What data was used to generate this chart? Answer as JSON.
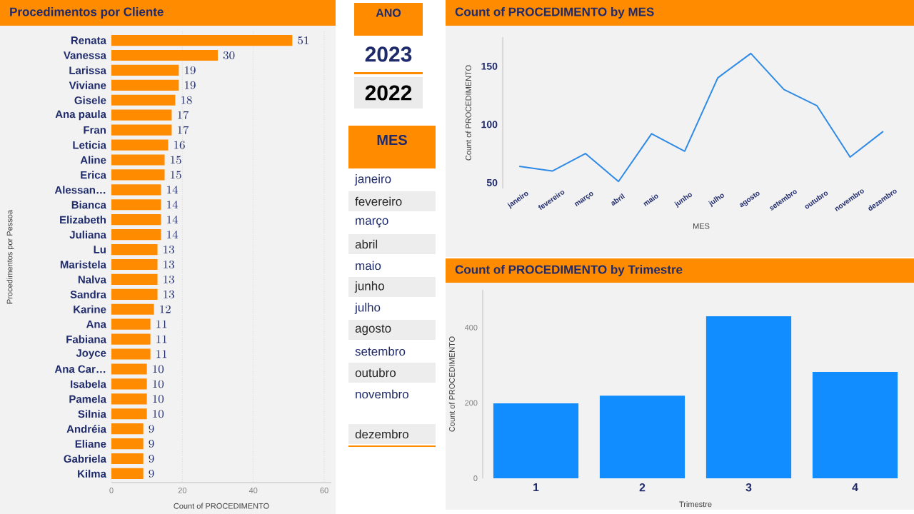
{
  "chart_data": [
    {
      "type": "bar",
      "orientation": "horizontal",
      "title": "Procedimentos por Cliente",
      "xlabel": "Count of PROCEDIMENTO",
      "ylabel": "Procedimentos por Pessoa",
      "categories": [
        "Renata",
        "Vanessa",
        "Larissa",
        "Viviane",
        "Gisele",
        "Ana paula",
        "Fran",
        "Leticia",
        "Aline",
        "Erica",
        "Alessan…",
        "Bianca",
        "Elizabeth",
        "Juliana",
        "Lu",
        "Maristela",
        "Nalva",
        "Sandra",
        "Karine",
        "Ana",
        "Fabiana",
        "Joyce",
        "Ana Car…",
        "Isabela",
        "Pamela",
        "Silnia",
        "Andréia",
        "Eliane",
        "Gabriela",
        "Kilma"
      ],
      "values": [
        51,
        30,
        19,
        19,
        18,
        17,
        17,
        16,
        15,
        15,
        14,
        14,
        14,
        14,
        13,
        13,
        13,
        13,
        12,
        11,
        11,
        11,
        10,
        10,
        10,
        10,
        9,
        9,
        9,
        9
      ],
      "color": "#ff8c00",
      "data_labels": true,
      "xlim": [
        0,
        62
      ],
      "xticks": [
        0,
        20,
        40,
        60
      ],
      "grid": "x"
    },
    {
      "type": "other",
      "title": "ANO",
      "annotations": [
        "2023",
        "2022"
      ]
    },
    {
      "type": "other",
      "title": "MES",
      "annotations": [
        "janeiro",
        "fevereiro",
        "março",
        "abril",
        "maio",
        "junho",
        "julho",
        "agosto",
        "setembro",
        "outubro",
        "novembro",
        "dezembro"
      ]
    },
    {
      "type": "line",
      "title": "Count of PROCEDIMENTO by MES",
      "xlabel": "MES",
      "ylabel": "Count of PROCEDIMENTO",
      "categories": [
        "janeiro",
        "fevereiro",
        "março",
        "abril",
        "maio",
        "junho",
        "julho",
        "agosto",
        "setembro",
        "outubro",
        "novembro",
        "dezembro"
      ],
      "values": [
        64,
        60,
        75,
        51,
        92,
        77,
        140,
        161,
        130,
        116,
        72,
        94
      ],
      "color": "#2e8ae6",
      "ylim": [
        45,
        175
      ],
      "yticks": [
        50,
        100,
        150
      ]
    },
    {
      "type": "bar",
      "title": "Count of PROCEDIMENTO by Trimestre",
      "xlabel": "Trimestre",
      "ylabel": "Count of PROCEDIMENTO",
      "categories": [
        "1",
        "2",
        "3",
        "4"
      ],
      "values": [
        199,
        219,
        430,
        282
      ],
      "color": "#118dff",
      "ylim": [
        0,
        500
      ],
      "yticks": [
        0,
        200,
        400
      ]
    }
  ]
}
